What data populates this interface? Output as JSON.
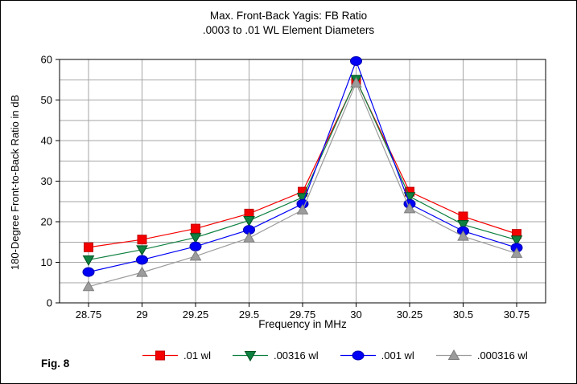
{
  "figure_label": "Fig. 8",
  "title": "Max. Front-Back Yagis: FB Ratio",
  "subtitle": ".0003 to .01 WL Element Diameters",
  "chart_data": {
    "type": "line",
    "title": "Max. Front-Back Yagis: FB Ratio",
    "subtitle": ".0003 to .01 WL Element Diameters",
    "xlabel": "Frequency in MHz",
    "ylabel": "180-Degree Front-to-Back Ratio in dB",
    "x": [
      28.75,
      29,
      29.25,
      29.5,
      29.75,
      30,
      30.25,
      30.5,
      30.75
    ],
    "x_tick_labels": [
      "28.75",
      "29",
      "29.25",
      "29.5",
      "29.75",
      "30",
      "30.25",
      "30.5",
      "30.75"
    ],
    "ylim": [
      0,
      60
    ],
    "y_major_ticks": [
      0,
      10,
      20,
      30,
      40,
      50,
      60
    ],
    "y_grid_interval": 5,
    "grid": true,
    "grid_color": "#a6a6a6",
    "axis_color": "#000000",
    "legend_position": "bottom",
    "series": [
      {
        "name": ".01 wl",
        "marker": "square",
        "color": "#f40000",
        "edge": "#c00000",
        "values": [
          13.7,
          15.6,
          18.3,
          22.0,
          27.4,
          54.9,
          27.4,
          21.3,
          17.0
        ]
      },
      {
        "name": ".00316 wl",
        "marker": "triangle-down",
        "color": "#0e8040",
        "edge": "#02521f",
        "values": [
          10.6,
          13.1,
          16.1,
          20.3,
          26.0,
          55.1,
          26.2,
          19.3,
          15.5
        ]
      },
      {
        "name": ".001 wl",
        "marker": "circle",
        "color": "#0000f5",
        "edge": "#0000b0",
        "values": [
          7.6,
          10.6,
          13.9,
          18.0,
          24.4,
          59.6,
          24.4,
          17.7,
          13.6
        ]
      },
      {
        "name": ".000316 wl",
        "marker": "triangle-up",
        "color": "#9c9c9c",
        "edge": "#7d7d7d",
        "values": [
          4.0,
          7.5,
          11.5,
          16.0,
          22.9,
          54.2,
          23.2,
          16.4,
          12.2
        ]
      }
    ]
  }
}
